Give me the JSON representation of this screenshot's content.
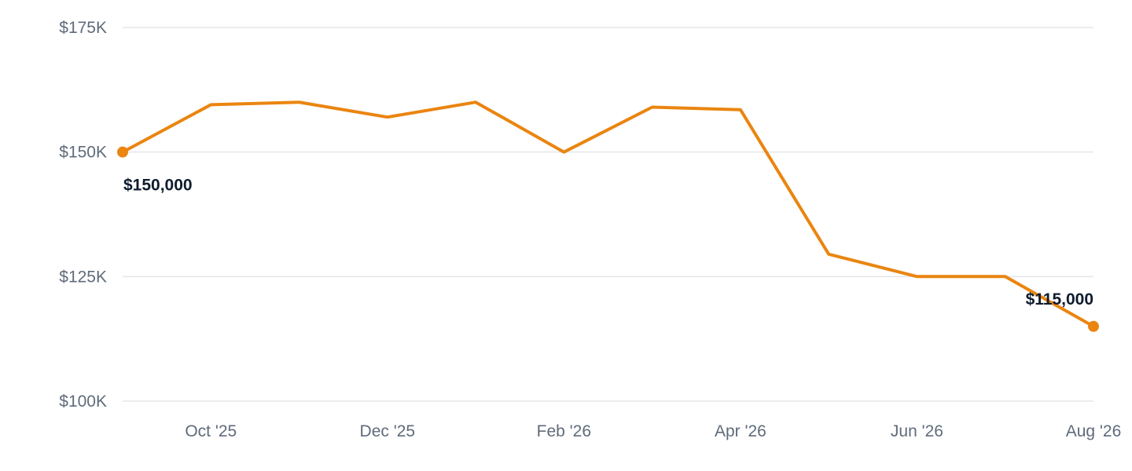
{
  "chart_data": {
    "type": "line",
    "title": "",
    "xlabel": "",
    "ylabel": "",
    "x": [
      "2025-09",
      "2025-10",
      "2025-11",
      "2025-12",
      "2026-01",
      "2026-02",
      "2026-03",
      "2026-04",
      "2026-05",
      "2026-06",
      "2026-07",
      "2026-08"
    ],
    "values": [
      150000,
      159500,
      160000,
      157000,
      160000,
      150000,
      159000,
      158500,
      129500,
      125000,
      125000,
      115000
    ],
    "x_tick_labels": [
      {
        "x": "2025-10",
        "label": "Oct '25"
      },
      {
        "x": "2025-12",
        "label": "Dec '25"
      },
      {
        "x": "2026-02",
        "label": "Feb '26"
      },
      {
        "x": "2026-04",
        "label": "Apr '26"
      },
      {
        "x": "2026-06",
        "label": "Jun '26"
      },
      {
        "x": "2026-08",
        "label": "Aug '26"
      }
    ],
    "y_ticks": [
      {
        "value": 100000,
        "label": "$100K"
      },
      {
        "value": 125000,
        "label": "$125K"
      },
      {
        "value": 150000,
        "label": "$150K"
      },
      {
        "value": 175000,
        "label": "$175K"
      }
    ],
    "ylim": [
      100000,
      175000
    ],
    "grid": true,
    "legend": "none",
    "data_labels": [
      {
        "x": "2025-09",
        "text": "$150,000"
      },
      {
        "x": "2026-08",
        "text": "$115,000"
      }
    ],
    "line_color": "#ea8510"
  }
}
